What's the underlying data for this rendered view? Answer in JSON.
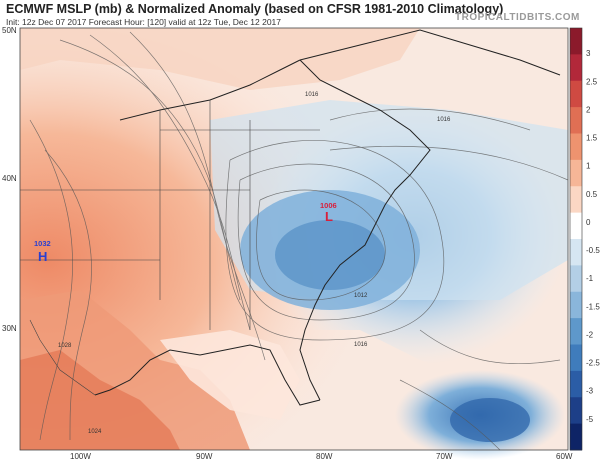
{
  "header": {
    "title": "ECMWF MSLP (mb) & Normalized Anomaly (based on CFSR 1981-2010 Climatology)",
    "subtitle": "Init: 12z Dec 07 2017   Forecast Hour: [120]   valid at 12z Tue, Dec 12 2017",
    "brand": "TROPICALTIDBITS.COM"
  },
  "map": {
    "lat_labels": [
      "50N",
      "40N",
      "30N"
    ],
    "lon_labels": [
      "100W",
      "90W",
      "80W",
      "70W",
      "60W"
    ],
    "isobar_labels": [
      "1016",
      "1016",
      "1012",
      "1016",
      "1028",
      "1024"
    ],
    "high": {
      "symbol": "H",
      "value": "1032",
      "color": "#2a3fd0"
    },
    "low": {
      "symbol": "L",
      "value": "1006",
      "color": "#d8203c"
    }
  },
  "colorbar": {
    "ticks": [
      "3",
      "2.5",
      "2",
      "1.5",
      "1",
      "0.5",
      "0",
      "-0.5",
      "-1",
      "-1.5",
      "-2",
      "-2.5",
      "-3",
      "-5"
    ],
    "colors": [
      "#8b1a2b",
      "#b2283a",
      "#cf4a42",
      "#e06f54",
      "#ee936f",
      "#f6b697",
      "#fbd7c4",
      "#ffffff",
      "#d6e6f2",
      "#b3cfe6",
      "#8ab6db",
      "#5e98cb",
      "#3f7cbc",
      "#2b5da6",
      "#1d3f88",
      "#0e2466"
    ]
  }
}
